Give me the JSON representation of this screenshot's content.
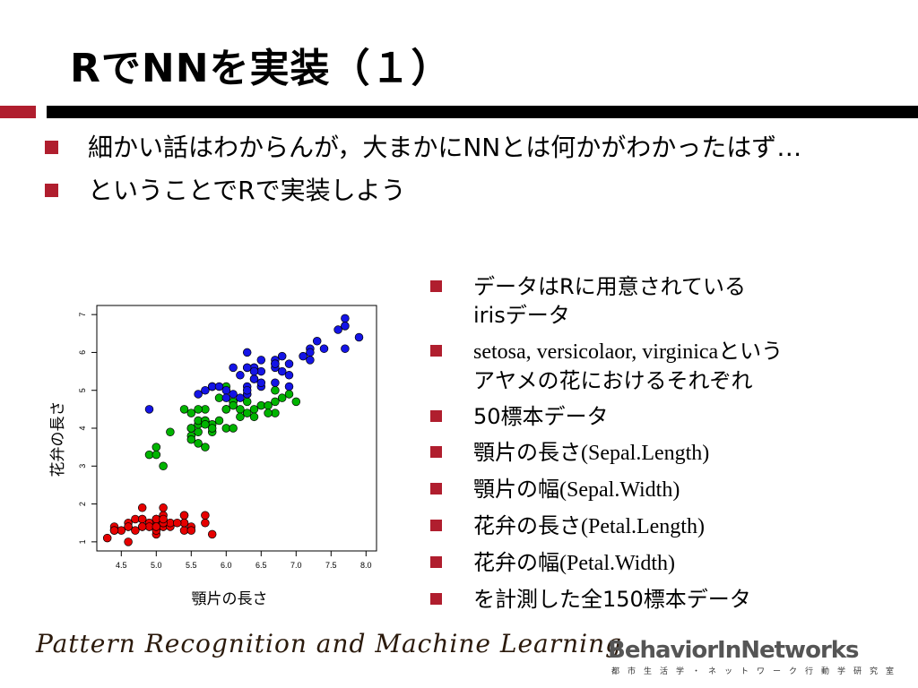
{
  "slide": {
    "title": "RでNNを実装（１）",
    "bullets": [
      "細かい話はわからんが，大まかにNNとは何かがわかったはず…",
      "ということでRで実装しよう"
    ],
    "right_bullets": [
      {
        "parts": [
          {
            "t": "データはRに用意されている"
          }
        ],
        "sub": "irisデータ"
      },
      {
        "parts": [
          {
            "t": "setosa, versicolaor, virginica",
            "serif": true
          },
          {
            "t": "という"
          }
        ],
        "sub": "アヤメの花におけるそれぞれ"
      },
      {
        "parts": [
          {
            "t": "50標本データ"
          }
        ]
      },
      {
        "parts": [
          {
            "t": "顎片の長さ"
          },
          {
            "t": "(Sepal.Length)",
            "serif": true
          }
        ]
      },
      {
        "parts": [
          {
            "t": "顎片の幅"
          },
          {
            "t": "(Sepal.Width)",
            "serif": true
          }
        ]
      },
      {
        "parts": [
          {
            "t": "花弁の長さ"
          },
          {
            "t": "(Petal.Length)",
            "serif": true
          }
        ]
      },
      {
        "parts": [
          {
            "t": "花弁の幅"
          },
          {
            "t": "(Petal.Width)",
            "serif": true
          }
        ]
      },
      {
        "parts": [
          {
            "t": "を計測した全150標本データ"
          }
        ]
      }
    ]
  },
  "footer": {
    "left_text": "Pattern Recognition and Machine Learning",
    "logo_text": "BehaviorInNetworks",
    "logo_subtext": "都市生活学・ネットワーク行動学研究室"
  },
  "colors": {
    "accent": "#b01e2e",
    "setosa": "#e60000",
    "versicolor": "#00b400",
    "virginica": "#1414e6"
  },
  "chart_data": {
    "type": "scatter",
    "xlabel": "顎片の長さ",
    "ylabel": "花弁の長さ",
    "xlim": [
      4.3,
      8.0
    ],
    "ylim": [
      1,
      7
    ],
    "xticks": [
      "4.5",
      "5.0",
      "5.5",
      "6.0",
      "6.5",
      "7.0",
      "7.5",
      "8.0"
    ],
    "yticks": [
      "1",
      "2",
      "3",
      "4",
      "5",
      "6",
      "7"
    ],
    "series": [
      {
        "color": "#e60000",
        "points": [
          [
            5.1,
            1.4
          ],
          [
            4.9,
            1.4
          ],
          [
            4.7,
            1.3
          ],
          [
            4.6,
            1.5
          ],
          [
            5.0,
            1.4
          ],
          [
            5.4,
            1.7
          ],
          [
            4.6,
            1.4
          ],
          [
            5.0,
            1.5
          ],
          [
            4.4,
            1.4
          ],
          [
            4.9,
            1.5
          ],
          [
            5.4,
            1.5
          ],
          [
            4.8,
            1.6
          ],
          [
            4.8,
            1.4
          ],
          [
            4.3,
            1.1
          ],
          [
            5.8,
            1.2
          ],
          [
            5.7,
            1.5
          ],
          [
            5.4,
            1.3
          ],
          [
            5.1,
            1.4
          ],
          [
            5.7,
            1.7
          ],
          [
            5.1,
            1.5
          ],
          [
            5.4,
            1.7
          ],
          [
            5.1,
            1.5
          ],
          [
            4.6,
            1.0
          ],
          [
            5.1,
            1.7
          ],
          [
            4.8,
            1.9
          ],
          [
            5.0,
            1.6
          ],
          [
            5.0,
            1.6
          ],
          [
            5.2,
            1.5
          ],
          [
            5.2,
            1.4
          ],
          [
            4.7,
            1.6
          ],
          [
            4.8,
            1.6
          ],
          [
            5.4,
            1.5
          ],
          [
            5.2,
            1.5
          ],
          [
            5.5,
            1.4
          ],
          [
            4.9,
            1.5
          ],
          [
            5.0,
            1.2
          ],
          [
            5.5,
            1.3
          ],
          [
            4.9,
            1.4
          ],
          [
            4.4,
            1.3
          ],
          [
            5.1,
            1.5
          ],
          [
            5.0,
            1.3
          ],
          [
            4.5,
            1.3
          ],
          [
            4.4,
            1.3
          ],
          [
            5.0,
            1.6
          ],
          [
            5.1,
            1.9
          ],
          [
            4.8,
            1.4
          ],
          [
            5.1,
            1.6
          ],
          [
            4.6,
            1.4
          ],
          [
            5.3,
            1.5
          ],
          [
            5.0,
            1.4
          ]
        ]
      },
      {
        "color": "#00b400",
        "points": [
          [
            7.0,
            4.7
          ],
          [
            6.4,
            4.5
          ],
          [
            6.9,
            4.9
          ],
          [
            5.5,
            4.0
          ],
          [
            6.5,
            4.6
          ],
          [
            5.7,
            4.5
          ],
          [
            6.3,
            4.7
          ],
          [
            4.9,
            3.3
          ],
          [
            6.6,
            4.6
          ],
          [
            5.2,
            3.9
          ],
          [
            5.0,
            3.5
          ],
          [
            5.9,
            4.2
          ],
          [
            6.0,
            4.0
          ],
          [
            6.1,
            4.7
          ],
          [
            5.6,
            3.6
          ],
          [
            6.7,
            4.4
          ],
          [
            5.6,
            4.5
          ],
          [
            5.8,
            4.1
          ],
          [
            6.2,
            4.5
          ],
          [
            5.6,
            3.9
          ],
          [
            5.9,
            4.8
          ],
          [
            6.1,
            4.0
          ],
          [
            6.3,
            4.9
          ],
          [
            6.1,
            4.7
          ],
          [
            6.4,
            4.3
          ],
          [
            6.6,
            4.4
          ],
          [
            6.8,
            4.8
          ],
          [
            6.7,
            5.0
          ],
          [
            6.0,
            4.5
          ],
          [
            5.7,
            3.5
          ],
          [
            5.5,
            3.8
          ],
          [
            5.5,
            3.7
          ],
          [
            5.8,
            3.9
          ],
          [
            6.0,
            5.1
          ],
          [
            5.4,
            4.5
          ],
          [
            6.0,
            4.5
          ],
          [
            6.7,
            4.7
          ],
          [
            6.3,
            4.4
          ],
          [
            5.6,
            4.1
          ],
          [
            5.5,
            4.0
          ],
          [
            5.5,
            4.4
          ],
          [
            6.1,
            4.6
          ],
          [
            5.8,
            4.0
          ],
          [
            5.0,
            3.3
          ],
          [
            5.6,
            4.2
          ],
          [
            5.7,
            4.2
          ],
          [
            5.7,
            4.2
          ],
          [
            6.2,
            4.3
          ],
          [
            5.1,
            3.0
          ],
          [
            5.7,
            4.1
          ]
        ]
      },
      {
        "color": "#1414e6",
        "points": [
          [
            6.3,
            6.0
          ],
          [
            5.8,
            5.1
          ],
          [
            7.1,
            5.9
          ],
          [
            6.3,
            5.6
          ],
          [
            6.5,
            5.8
          ],
          [
            7.6,
            6.6
          ],
          [
            4.9,
            4.5
          ],
          [
            7.3,
            6.3
          ],
          [
            6.7,
            5.8
          ],
          [
            7.2,
            6.1
          ],
          [
            6.5,
            5.1
          ],
          [
            6.4,
            5.3
          ],
          [
            6.8,
            5.5
          ],
          [
            5.7,
            5.0
          ],
          [
            5.8,
            5.1
          ],
          [
            6.4,
            5.3
          ],
          [
            6.5,
            5.5
          ],
          [
            7.7,
            6.7
          ],
          [
            7.7,
            6.9
          ],
          [
            6.0,
            5.0
          ],
          [
            6.9,
            5.7
          ],
          [
            5.6,
            4.9
          ],
          [
            7.7,
            6.7
          ],
          [
            6.3,
            4.9
          ],
          [
            6.7,
            5.7
          ],
          [
            7.2,
            6.0
          ],
          [
            6.2,
            4.8
          ],
          [
            6.1,
            4.9
          ],
          [
            6.4,
            5.6
          ],
          [
            7.2,
            5.8
          ],
          [
            7.4,
            6.1
          ],
          [
            7.9,
            6.4
          ],
          [
            6.4,
            5.6
          ],
          [
            6.3,
            5.1
          ],
          [
            6.1,
            5.6
          ],
          [
            7.7,
            6.1
          ],
          [
            6.3,
            5.6
          ],
          [
            6.4,
            5.5
          ],
          [
            6.0,
            4.8
          ],
          [
            6.9,
            5.4
          ],
          [
            6.7,
            5.6
          ],
          [
            6.9,
            5.1
          ],
          [
            5.8,
            5.1
          ],
          [
            6.8,
            5.9
          ],
          [
            6.7,
            5.7
          ],
          [
            6.7,
            5.2
          ],
          [
            6.3,
            5.0
          ],
          [
            6.5,
            5.2
          ],
          [
            6.2,
            5.4
          ],
          [
            5.9,
            5.1
          ]
        ]
      }
    ]
  }
}
